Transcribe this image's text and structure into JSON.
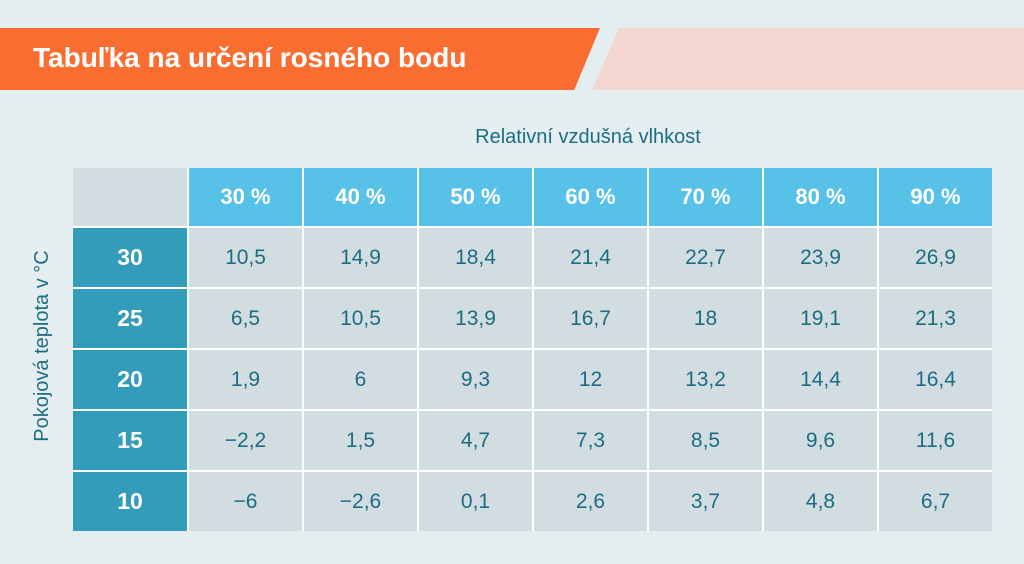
{
  "title": "Tabuľka na určení rosného bodu",
  "colors": {
    "banner": "#f96e30",
    "banner_ghost": "#f3d6cf",
    "background": "#e4eef1",
    "header_column": "#58c1e8",
    "header_row": "#339cba",
    "cell": "#d1dde1",
    "text": "#1c6d84"
  },
  "chart_data": {
    "type": "table",
    "title": "Tabuľka na určení rosného bodu",
    "xlabel": "Relativní vzdušná vlhkost",
    "ylabel": "Pokojová teplota v °C",
    "columns": [
      "30 %",
      "40 %",
      "50 %",
      "60 %",
      "70 %",
      "80 %",
      "90 %"
    ],
    "rows": [
      {
        "label": "30",
        "values": [
          "10,5",
          "14,9",
          "18,4",
          "21,4",
          "22,7",
          "23,9",
          "26,9"
        ]
      },
      {
        "label": "25",
        "values": [
          "6,5",
          "10,5",
          "13,9",
          "16,7",
          "18",
          "19,1",
          "21,3"
        ]
      },
      {
        "label": "20",
        "values": [
          "1,9",
          "6",
          "9,3",
          "12",
          "13,2",
          "14,4",
          "16,4"
        ]
      },
      {
        "label": "15",
        "values": [
          "−2,2",
          "1,5",
          "4,7",
          "7,3",
          "8,5",
          "9,6",
          "11,6"
        ]
      },
      {
        "label": "10",
        "values": [
          "−6",
          "−2,6",
          "0,1",
          "2,6",
          "3,7",
          "4,8",
          "6,7"
        ]
      }
    ]
  }
}
